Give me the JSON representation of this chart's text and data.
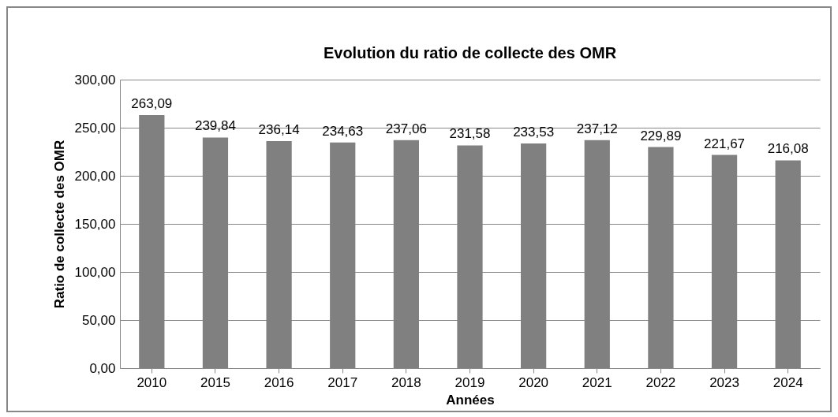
{
  "chart_data": {
    "type": "bar",
    "title": "Evolution du ratio de collecte des OMR",
    "xlabel": "Années",
    "ylabel": "Ratio de collecte des OMR",
    "categories": [
      "2010",
      "2015",
      "2016",
      "2017",
      "2018",
      "2019",
      "2020",
      "2021",
      "2022",
      "2023",
      "2024"
    ],
    "values": [
      263.09,
      239.84,
      236.14,
      234.63,
      237.06,
      231.58,
      233.53,
      237.12,
      229.89,
      221.67,
      216.08
    ],
    "value_labels": [
      "263,09",
      "239,84",
      "236,14",
      "234,63",
      "237,06",
      "231,58",
      "233,53",
      "237,12",
      "229,89",
      "221,67",
      "216,08"
    ],
    "color": "#808080",
    "ylim": [
      0,
      300
    ],
    "yticks": [
      {
        "value": 0,
        "label": "0,00"
      },
      {
        "value": 50,
        "label": "50,00"
      },
      {
        "value": 100,
        "label": "100,00"
      },
      {
        "value": 150,
        "label": "150,00"
      },
      {
        "value": 200,
        "label": "200,00"
      },
      {
        "value": 250,
        "label": "250,00"
      },
      {
        "value": 300,
        "label": "300,00"
      }
    ],
    "grid": "y"
  }
}
